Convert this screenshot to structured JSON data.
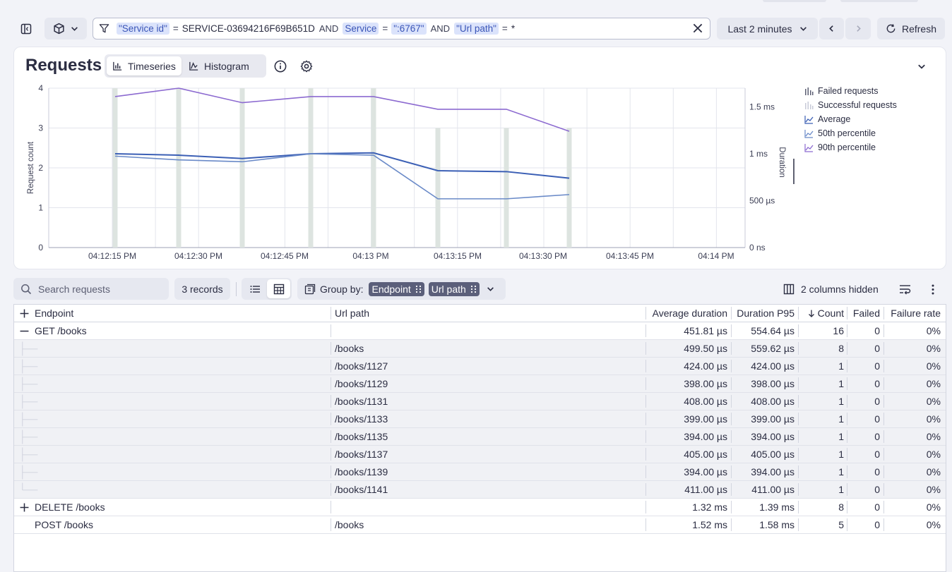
{
  "toolbar": {
    "filter": {
      "clause1_key": "\"Service id\"",
      "clause1_op": "=",
      "clause1_val": "SERVICE-03694216F69B651D",
      "and1": "AND",
      "clause2_key": "Service",
      "clause2_op": "=",
      "clause2_val": "\":6767\"",
      "and2": "AND",
      "clause3_key": "\"Url path\"",
      "clause3_op": "=",
      "clause3_val": "*"
    },
    "timeframe": "Last 2 minutes",
    "refresh": "Refresh"
  },
  "panel": {
    "title": "Requests",
    "tabs": [
      "Timeseries",
      "Histogram"
    ],
    "active_tab": "Timeseries"
  },
  "chart_data": {
    "type": "line",
    "x": [
      "04:12:05 PM",
      "04:12:20 PM",
      "04:12:35 PM",
      "04:12:50 PM",
      "04:13:05 PM",
      "04:13:20 PM",
      "04:13:35 PM",
      "04:13:50 PM"
    ],
    "x_tick_labels": [
      "04:12:15 PM",
      "04:12:30 PM",
      "04:12:45 PM",
      "04:13 PM",
      "04:13:15 PM",
      "04:13:30 PM",
      "04:13:45 PM",
      "04:14 PM"
    ],
    "ylabel_left": "Request count",
    "ylabel_right": "Duration",
    "y_left_ticks": [
      "0",
      "1",
      "2",
      "3",
      "4"
    ],
    "y_left_range": [
      0,
      4
    ],
    "y_right_ticks": [
      "0 ns",
      "500 µs",
      "1 ms",
      "1.5 ms"
    ],
    "y_right_range_us": [
      0,
      1700
    ],
    "bar_series": [
      {
        "name": "Failed requests",
        "values": [
          0,
          0,
          0,
          0,
          0,
          0,
          0,
          0
        ]
      },
      {
        "name": "Successful requests",
        "values": [
          4,
          4,
          4,
          4,
          4,
          3,
          3,
          3
        ]
      }
    ],
    "line_series": [
      {
        "name": "Average",
        "color": "#3b5fb5",
        "values_us": [
          1000,
          985,
          950,
          1000,
          1010,
          820,
          810,
          740
        ]
      },
      {
        "name": "50th percentile",
        "color": "#6a8ac8",
        "values_us": [
          975,
          935,
          915,
          1000,
          985,
          520,
          520,
          565
        ]
      },
      {
        "name": "90th percentile",
        "color": "#8c6ad0",
        "values_us": [
          1610,
          1700,
          1545,
          1610,
          1610,
          1475,
          1475,
          1240
        ]
      }
    ],
    "legend_position": "right",
    "grid": true
  },
  "legend": [
    {
      "label": "Failed requests",
      "icon": "bar-icon"
    },
    {
      "label": "Successful requests",
      "icon": "bar-light-icon"
    },
    {
      "label": "Average",
      "icon": "line-icon"
    },
    {
      "label": "50th percentile",
      "icon": "line-icon"
    },
    {
      "label": "90th percentile",
      "icon": "line-icon"
    }
  ],
  "table_toolbar": {
    "search_placeholder": "Search requests",
    "records": "3 records",
    "group_by_label": "Group by:",
    "group_chips": [
      "Endpoint",
      "Url path"
    ],
    "hidden_columns": "2 columns hidden"
  },
  "table": {
    "headers": [
      "Endpoint",
      "Url path",
      "Average duration",
      "Duration P95",
      "Count",
      "Failed",
      "Failure rate"
    ],
    "rows": [
      {
        "type": "group",
        "expander": "—",
        "endpoint": "GET /books",
        "url": "",
        "avg": "451.81 µs",
        "p95": "554.64 µs",
        "count": "16",
        "failed": "0",
        "rate": "0%"
      },
      {
        "type": "child",
        "endpoint": "",
        "url": "/books",
        "avg": "499.50 µs",
        "p95": "559.62 µs",
        "count": "8",
        "failed": "0",
        "rate": "0%"
      },
      {
        "type": "child",
        "endpoint": "",
        "url": "/books/1127",
        "avg": "424.00 µs",
        "p95": "424.00 µs",
        "count": "1",
        "failed": "0",
        "rate": "0%"
      },
      {
        "type": "child",
        "endpoint": "",
        "url": "/books/1129",
        "avg": "398.00 µs",
        "p95": "398.00 µs",
        "count": "1",
        "failed": "0",
        "rate": "0%"
      },
      {
        "type": "child",
        "endpoint": "",
        "url": "/books/1131",
        "avg": "408.00 µs",
        "p95": "408.00 µs",
        "count": "1",
        "failed": "0",
        "rate": "0%"
      },
      {
        "type": "child",
        "endpoint": "",
        "url": "/books/1133",
        "avg": "399.00 µs",
        "p95": "399.00 µs",
        "count": "1",
        "failed": "0",
        "rate": "0%"
      },
      {
        "type": "child",
        "endpoint": "",
        "url": "/books/1135",
        "avg": "394.00 µs",
        "p95": "394.00 µs",
        "count": "1",
        "failed": "0",
        "rate": "0%"
      },
      {
        "type": "child",
        "endpoint": "",
        "url": "/books/1137",
        "avg": "405.00 µs",
        "p95": "405.00 µs",
        "count": "1",
        "failed": "0",
        "rate": "0%"
      },
      {
        "type": "child",
        "endpoint": "",
        "url": "/books/1139",
        "avg": "394.00 µs",
        "p95": "394.00 µs",
        "count": "1",
        "failed": "0",
        "rate": "0%"
      },
      {
        "type": "child",
        "endpoint": "",
        "url": "/books/1141",
        "avg": "411.00 µs",
        "p95": "411.00 µs",
        "count": "1",
        "failed": "0",
        "rate": "0%"
      },
      {
        "type": "group",
        "expander": "+",
        "endpoint": "DELETE /books",
        "url": "",
        "avg": "1.32 ms",
        "p95": "1.39 ms",
        "count": "8",
        "failed": "0",
        "rate": "0%"
      },
      {
        "type": "single",
        "expander": "",
        "endpoint": "POST /books",
        "url": "/books",
        "avg": "1.52 ms",
        "p95": "1.58 ms",
        "count": "5",
        "failed": "0",
        "rate": "0%"
      }
    ]
  }
}
